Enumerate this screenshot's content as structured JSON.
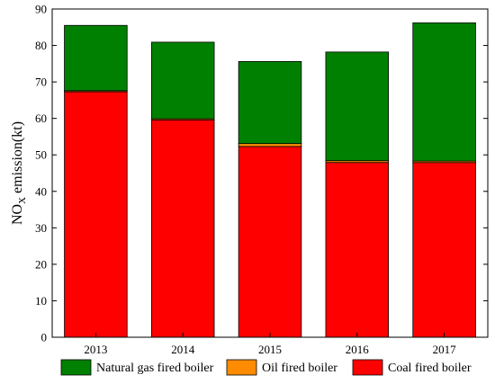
{
  "chart_data": {
    "type": "bar",
    "stacked": true,
    "categories": [
      "2013",
      "2014",
      "2015",
      "2016",
      "2017"
    ],
    "series": [
      {
        "name": "Coal fired boiler",
        "color": "#ff0000",
        "values": [
          67.3,
          59.6,
          52.3,
          47.9,
          47.9
        ]
      },
      {
        "name": "Oil fired boiler",
        "color": "#ff8c00",
        "values": [
          0.3,
          0.3,
          0.8,
          0.5,
          0.4
        ]
      },
      {
        "name": "Natural gas fired boiler",
        "color": "#008000",
        "values": [
          17.9,
          21.0,
          22.5,
          29.8,
          37.9
        ]
      }
    ],
    "ylabel": {
      "prefix": "NO",
      "subscript": "X",
      "suffix": " emission(kt)"
    },
    "ylim": [
      0,
      90
    ],
    "yticks": [
      0,
      10,
      20,
      30,
      40,
      50,
      60,
      70,
      80,
      90
    ],
    "grid": false,
    "legend_placement": "bottom",
    "legend_order": [
      "Natural gas fired boiler",
      "Oil fired boiler",
      "Coal fired boiler"
    ]
  }
}
